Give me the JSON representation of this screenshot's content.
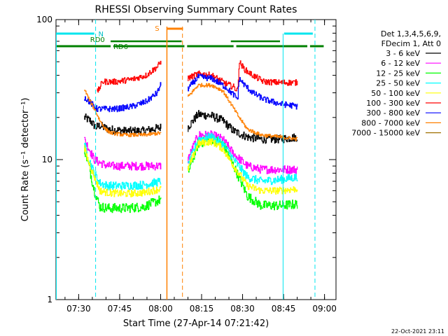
{
  "chart_data": {
    "type": "line",
    "title": "RHESSI Observing Summary Count Rates",
    "xlabel": "Start Time (27-Apr-14 07:21:42)",
    "ylabel": "Count Rate (s⁻¹ detector⁻¹)",
    "yscale": "log",
    "ylim": [
      1,
      100
    ],
    "xlim_minutes": [
      0,
      102.5
    ],
    "x_ticks": [
      "07:30",
      "07:45",
      "08:00",
      "08:15",
      "08:30",
      "08:45",
      "09:00"
    ],
    "x_tick_minutes": [
      8.3,
      23.3,
      38.3,
      53.3,
      68.3,
      83.3,
      98.3
    ],
    "y_ticks": [
      "1",
      "10",
      "100"
    ],
    "y_tick_values": [
      1,
      10,
      100
    ],
    "legend_header": [
      "Det 1,3,4,5,6,9,",
      "FDecim 1, Att 0"
    ],
    "legend_placement": "right",
    "footer_date": "22-Oct-2021 23:11",
    "flags": {
      "N_label": "N",
      "RD0_label": "RD0",
      "RD6_label": "RD6",
      "S_label": "S",
      "night_segments": [
        [
          0,
          14
        ],
        [
          83.5,
          94
        ]
      ],
      "rd0_segments": [
        [
          20,
          46
        ],
        [
          64,
          82
        ]
      ],
      "rd6_segments": [
        [
          0,
          20
        ],
        [
          21,
          47
        ],
        [
          48,
          65
        ],
        [
          66,
          92
        ],
        [
          93,
          98
        ]
      ],
      "saa_segment": [
        40.5,
        46.5
      ]
    },
    "markers": {
      "night_lines": [
        14.5,
        94.8
      ],
      "night_edges": [
        0,
        83
      ],
      "saa_edge_line": 40.6,
      "saa_dashed_line": 46.3
    },
    "gaps_minutes": [
      [
        38.7,
        48.2
      ],
      [
        89,
        102.5
      ]
    ],
    "segments_minutes": [
      [
        10.3,
        38.7
      ],
      [
        48.2,
        89
      ]
    ],
    "series": [
      {
        "name": "3 - 6 keV",
        "color": "#000000",
        "seg1": [
          [
            10.3,
            20
          ],
          [
            12.5,
            19
          ],
          [
            14.5,
            17
          ],
          [
            16,
            17.5
          ],
          [
            19,
            16.5
          ],
          [
            25,
            16
          ],
          [
            32,
            16
          ],
          [
            38.5,
            17
          ]
        ],
        "seg2": [
          [
            48.2,
            17
          ],
          [
            52,
            21
          ],
          [
            57,
            20.5
          ],
          [
            61,
            19
          ],
          [
            65,
            16
          ],
          [
            70,
            14.5
          ],
          [
            75,
            14
          ],
          [
            82,
            14
          ],
          [
            88.5,
            14.5
          ]
        ],
        "noise": 0.07
      },
      {
        "name": "6 - 12 keV",
        "color": "#ff00ff",
        "seg1": [
          [
            10.3,
            14
          ],
          [
            12,
            12
          ],
          [
            14,
            10
          ],
          [
            16,
            9.5
          ],
          [
            19,
            9
          ],
          [
            25,
            9
          ],
          [
            32,
            9
          ],
          [
            38.5,
            9
          ]
        ],
        "seg2": [
          [
            48.2,
            10
          ],
          [
            52,
            15
          ],
          [
            57,
            15
          ],
          [
            61,
            14
          ],
          [
            65,
            11
          ],
          [
            70,
            9
          ],
          [
            75,
            8.5
          ],
          [
            82,
            8.5
          ],
          [
            88.5,
            8.5
          ]
        ],
        "noise": 0.07
      },
      {
        "name": "12 - 25 keV",
        "color": "#00ff00",
        "seg1": [
          [
            10.3,
            12
          ],
          [
            12,
            9
          ],
          [
            14,
            6
          ],
          [
            16,
            4.6
          ],
          [
            19,
            4.5
          ],
          [
            25,
            4.5
          ],
          [
            32,
            4.6
          ],
          [
            38.5,
            5.2
          ]
        ],
        "seg2": [
          [
            48.2,
            8
          ],
          [
            52,
            13
          ],
          [
            57,
            14
          ],
          [
            61,
            13
          ],
          [
            65,
            9
          ],
          [
            70,
            5.5
          ],
          [
            75,
            4.7
          ],
          [
            82,
            4.7
          ],
          [
            88.5,
            4.8
          ]
        ],
        "noise": 0.08
      },
      {
        "name": "25 - 50 keV",
        "color": "#00ffff",
        "seg1": [
          [
            10.3,
            13
          ],
          [
            12,
            10
          ],
          [
            14,
            8
          ],
          [
            16,
            6.8
          ],
          [
            19,
            6.5
          ],
          [
            25,
            6.5
          ],
          [
            32,
            6.6
          ],
          [
            38.5,
            7
          ]
        ],
        "seg2": [
          [
            48.2,
            9
          ],
          [
            52,
            14
          ],
          [
            57,
            14.5
          ],
          [
            61,
            13
          ],
          [
            65,
            10
          ],
          [
            70,
            7.5
          ],
          [
            75,
            7
          ],
          [
            82,
            7.2
          ],
          [
            88.5,
            7.5
          ]
        ],
        "noise": 0.07
      },
      {
        "name": "50 - 100 keV",
        "color": "#ffff00",
        "seg1": [
          [
            10.3,
            12
          ],
          [
            12,
            9.5
          ],
          [
            14,
            7.5
          ],
          [
            16,
            6
          ],
          [
            19,
            5.8
          ],
          [
            25,
            5.7
          ],
          [
            32,
            5.8
          ],
          [
            38.5,
            6.2
          ]
        ],
        "seg2": [
          [
            48.2,
            8.5
          ],
          [
            52,
            13
          ],
          [
            57,
            13.5
          ],
          [
            61,
            12
          ],
          [
            65,
            9
          ],
          [
            70,
            6.5
          ],
          [
            75,
            6
          ],
          [
            82,
            6
          ],
          [
            88.5,
            6.2
          ]
        ],
        "noise": 0.06
      },
      {
        "name": "100 - 300 keV",
        "color": "#ff0000",
        "seg1": [
          [
            15,
            30
          ],
          [
            17,
            36
          ],
          [
            22,
            36
          ],
          [
            28,
            37.5
          ],
          [
            33,
            40
          ],
          [
            37,
            46
          ],
          [
            38.5,
            50
          ]
        ],
        "seg2": [
          [
            48.2,
            38
          ],
          [
            52,
            41
          ],
          [
            57,
            40
          ],
          [
            62,
            35
          ],
          [
            65,
            33
          ],
          [
            66.5,
            31
          ],
          [
            67,
            50
          ],
          [
            69,
            44
          ],
          [
            72,
            40
          ],
          [
            76,
            36
          ],
          [
            82,
            35.5
          ],
          [
            88.5,
            35.5
          ]
        ],
        "noise": 0.05
      },
      {
        "name": "300 - 800 keV",
        "color": "#0000ff",
        "seg1": [
          [
            10.3,
            28
          ],
          [
            13,
            25
          ],
          [
            15,
            23
          ],
          [
            18,
            23
          ],
          [
            22,
            23
          ],
          [
            28,
            24
          ],
          [
            33,
            26
          ],
          [
            37,
            30
          ],
          [
            38.5,
            35
          ]
        ],
        "seg2": [
          [
            48.2,
            32
          ],
          [
            52,
            39
          ],
          [
            57,
            38
          ],
          [
            62,
            33
          ],
          [
            65,
            29
          ],
          [
            66.5,
            27
          ],
          [
            67,
            38
          ],
          [
            69,
            34
          ],
          [
            72,
            30
          ],
          [
            76,
            27
          ],
          [
            82,
            25
          ],
          [
            88.5,
            24
          ]
        ],
        "noise": 0.05
      },
      {
        "name": "800 - 7000 keV",
        "color": "#ff8000",
        "seg1": [
          [
            10.3,
            32
          ],
          [
            12,
            27
          ],
          [
            14,
            23
          ],
          [
            16,
            19
          ],
          [
            18,
            16.5
          ],
          [
            20,
            15.5
          ],
          [
            25,
            15
          ],
          [
            32,
            15
          ],
          [
            38.5,
            15.5
          ]
        ],
        "seg2": [
          [
            48.2,
            28
          ],
          [
            52,
            34
          ],
          [
            57,
            34
          ],
          [
            61,
            31
          ],
          [
            64,
            25
          ],
          [
            67,
            20
          ],
          [
            70,
            16.5
          ],
          [
            75,
            15
          ],
          [
            82,
            14.5
          ],
          [
            88.5,
            14
          ]
        ],
        "noise": 0.03
      },
      {
        "name": "7000 - 15000 keV",
        "color": "#a07000",
        "seg1": [],
        "seg2": [],
        "noise": 0
      }
    ]
  }
}
